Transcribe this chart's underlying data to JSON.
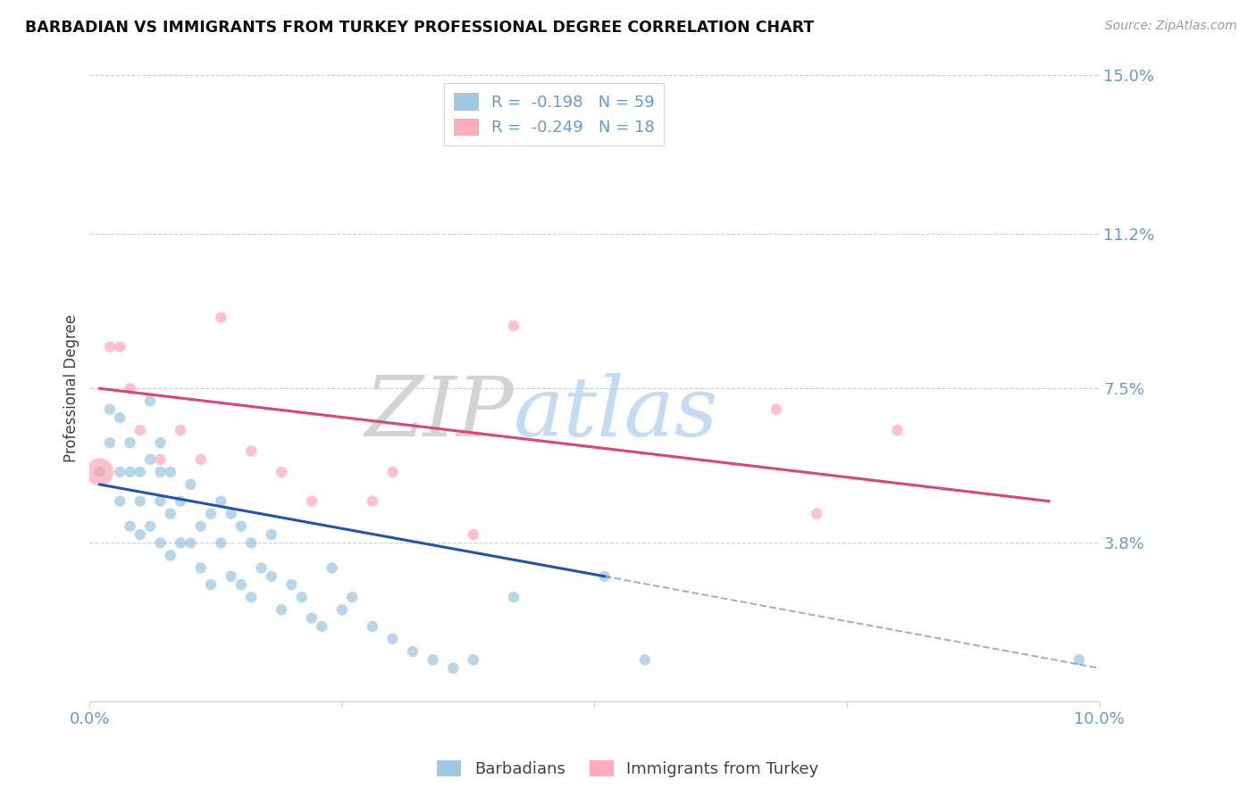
{
  "title": "BARBADIAN VS IMMIGRANTS FROM TURKEY PROFESSIONAL DEGREE CORRELATION CHART",
  "source": "Source: ZipAtlas.com",
  "tick_color": "#6699cc",
  "ylabel": "Professional Degree",
  "xlim": [
    0.0,
    0.1
  ],
  "ylim": [
    0.0,
    0.15
  ],
  "x_tick_positions": [
    0.0,
    0.025,
    0.05,
    0.075,
    0.1
  ],
  "x_tick_labels": [
    "0.0%",
    "",
    "",
    "",
    "10.0%"
  ],
  "y_ticks_right": [
    0.0,
    0.038,
    0.075,
    0.112,
    0.15
  ],
  "y_tick_labels_right": [
    "",
    "3.8%",
    "7.5%",
    "11.2%",
    "15.0%"
  ],
  "legend_label1": "Barbadians",
  "legend_label2": "Immigrants from Turkey",
  "blue_color": "#88bbdd",
  "pink_color": "#ff99aa",
  "blue_line_color": "#2255aa",
  "pink_line_color": "#dd4477",
  "watermark": "ZIPatlas",
  "barbadian_x": [
    0.001,
    0.002,
    0.002,
    0.003,
    0.003,
    0.003,
    0.004,
    0.004,
    0.004,
    0.005,
    0.005,
    0.005,
    0.006,
    0.006,
    0.006,
    0.007,
    0.007,
    0.007,
    0.007,
    0.008,
    0.008,
    0.008,
    0.009,
    0.009,
    0.01,
    0.01,
    0.011,
    0.011,
    0.012,
    0.012,
    0.013,
    0.013,
    0.014,
    0.014,
    0.015,
    0.015,
    0.016,
    0.016,
    0.017,
    0.018,
    0.018,
    0.019,
    0.02,
    0.021,
    0.022,
    0.023,
    0.024,
    0.025,
    0.026,
    0.028,
    0.03,
    0.032,
    0.034,
    0.036,
    0.038,
    0.042,
    0.051,
    0.055,
    0.098
  ],
  "barbadian_y": [
    0.055,
    0.07,
    0.062,
    0.068,
    0.055,
    0.048,
    0.062,
    0.055,
    0.042,
    0.055,
    0.048,
    0.04,
    0.072,
    0.058,
    0.042,
    0.062,
    0.055,
    0.048,
    0.038,
    0.055,
    0.045,
    0.035,
    0.048,
    0.038,
    0.052,
    0.038,
    0.042,
    0.032,
    0.045,
    0.028,
    0.048,
    0.038,
    0.045,
    0.03,
    0.042,
    0.028,
    0.038,
    0.025,
    0.032,
    0.04,
    0.03,
    0.022,
    0.028,
    0.025,
    0.02,
    0.018,
    0.032,
    0.022,
    0.025,
    0.018,
    0.015,
    0.012,
    0.01,
    0.008,
    0.01,
    0.025,
    0.03,
    0.01,
    0.01
  ],
  "barbadian_sizes": [
    80,
    80,
    80,
    80,
    80,
    80,
    80,
    80,
    80,
    80,
    80,
    80,
    80,
    80,
    80,
    80,
    80,
    80,
    80,
    80,
    80,
    80,
    80,
    80,
    80,
    80,
    80,
    80,
    80,
    80,
    80,
    80,
    80,
    80,
    80,
    80,
    80,
    80,
    80,
    80,
    80,
    80,
    80,
    80,
    80,
    80,
    80,
    80,
    80,
    80,
    80,
    80,
    80,
    80,
    80,
    80,
    80,
    80,
    80
  ],
  "turkey_x": [
    0.001,
    0.002,
    0.003,
    0.004,
    0.005,
    0.007,
    0.009,
    0.011,
    0.013,
    0.016,
    0.019,
    0.022,
    0.028,
    0.03,
    0.038,
    0.042,
    0.068,
    0.072,
    0.08
  ],
  "turkey_y": [
    0.055,
    0.085,
    0.085,
    0.075,
    0.065,
    0.058,
    0.065,
    0.058,
    0.092,
    0.06,
    0.055,
    0.048,
    0.048,
    0.055,
    0.04,
    0.09,
    0.07,
    0.045,
    0.065
  ],
  "turkey_sizes": [
    500,
    80,
    80,
    80,
    80,
    80,
    80,
    80,
    80,
    80,
    80,
    80,
    80,
    80,
    80,
    80,
    80,
    80,
    80
  ],
  "blue_line_x_start": 0.001,
  "blue_line_x_solid_end": 0.051,
  "blue_line_x_end": 0.1,
  "pink_line_x_start": 0.001,
  "pink_line_x_end": 0.095,
  "blue_line_y_start": 0.052,
  "blue_line_y_solid_end": 0.03,
  "blue_line_y_end": 0.008,
  "pink_line_y_start": 0.075,
  "pink_line_y_end": 0.048
}
